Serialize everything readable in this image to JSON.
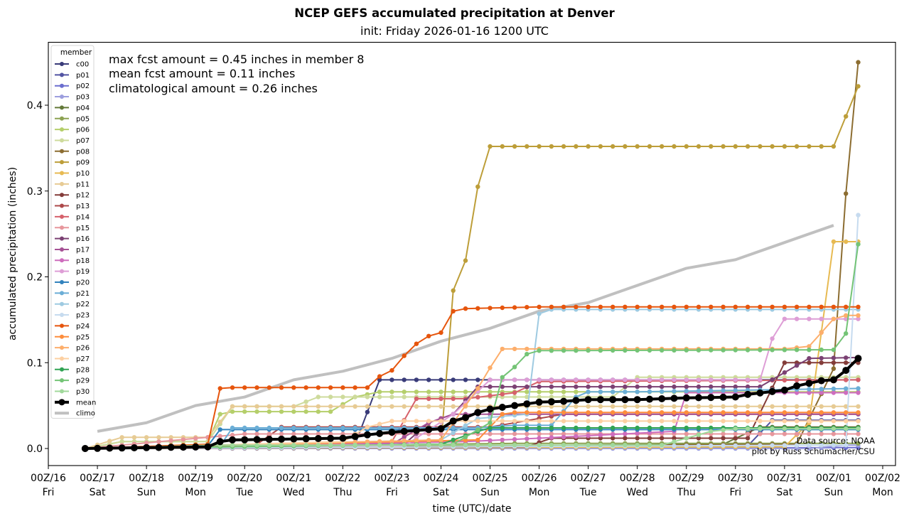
{
  "chart_data": {
    "type": "line",
    "title": "NCEP GEFS accumulated precipitation at Denver",
    "subtitle": "init: Friday 2026-01-16 1200 UTC",
    "xlabel": "time (UTC)/date",
    "ylabel": "accumulated precipitation (inches)",
    "x_units": "days since 00Z/16",
    "xlim": [
      0,
      17
    ],
    "ylim": [
      -0.022,
      0.475
    ],
    "grid": false,
    "x_ticks": [
      {
        "t": 0,
        "line1": "00Z/16",
        "line2": "Fri"
      },
      {
        "t": 1,
        "line1": "00Z/17",
        "line2": "Sat"
      },
      {
        "t": 2,
        "line1": "00Z/18",
        "line2": "Sun"
      },
      {
        "t": 3,
        "line1": "00Z/19",
        "line2": "Mon"
      },
      {
        "t": 4,
        "line1": "00Z/20",
        "line2": "Tue"
      },
      {
        "t": 5,
        "line1": "00Z/21",
        "line2": "Wed"
      },
      {
        "t": 6,
        "line1": "00Z/22",
        "line2": "Thu"
      },
      {
        "t": 7,
        "line1": "00Z/23",
        "line2": "Fri"
      },
      {
        "t": 8,
        "line1": "00Z/24",
        "line2": "Sat"
      },
      {
        "t": 9,
        "line1": "00Z/25",
        "line2": "Sun"
      },
      {
        "t": 10,
        "line1": "00Z/26",
        "line2": "Mon"
      },
      {
        "t": 11,
        "line1": "00Z/27",
        "line2": "Tue"
      },
      {
        "t": 12,
        "line1": "00Z/28",
        "line2": "Wed"
      },
      {
        "t": 13,
        "line1": "00Z/29",
        "line2": "Thu"
      },
      {
        "t": 14,
        "line1": "00Z/30",
        "line2": "Fri"
      },
      {
        "t": 15,
        "line1": "00Z/31",
        "line2": "Sat"
      },
      {
        "t": 16,
        "line1": "00Z/01",
        "line2": "Sun"
      },
      {
        "t": 17,
        "line1": "00Z/02",
        "line2": "Mon"
      }
    ],
    "y_ticks": [
      {
        "v": 0.0,
        "label": "0.0"
      },
      {
        "v": 0.1,
        "label": "0.1"
      },
      {
        "v": 0.2,
        "label": "0.2"
      },
      {
        "v": 0.3,
        "label": "0.3"
      },
      {
        "v": 0.4,
        "label": "0.4"
      }
    ],
    "time_start": 0.75,
    "time_end": 16.5,
    "time_step": 0.25,
    "legend": {
      "title": "member",
      "placement": "top-left"
    },
    "series": [
      {
        "name": "c00",
        "color": "#393b79",
        "points": [
          [
            0.75,
            0
          ],
          [
            6.25,
            0.005
          ],
          [
            6.75,
            0.08
          ],
          [
            16.5,
            0.08
          ]
        ]
      },
      {
        "name": "p01",
        "color": "#5254a3",
        "points": [
          [
            0.75,
            0
          ],
          [
            14.25,
            0.003
          ],
          [
            14.75,
            0.033
          ],
          [
            16.5,
            0.033
          ]
        ]
      },
      {
        "name": "p02",
        "color": "#6b6ecf",
        "points": [
          [
            0.75,
            0
          ],
          [
            16.5,
            0.001
          ]
        ]
      },
      {
        "name": "p03",
        "color": "#9c9ede",
        "points": [
          [
            0.75,
            0
          ],
          [
            15.5,
            0
          ],
          [
            16.25,
            0.004
          ],
          [
            16.5,
            0.004
          ]
        ]
      },
      {
        "name": "p04",
        "color": "#637939",
        "points": [
          [
            0.75,
            0
          ],
          [
            13.75,
            0.005
          ],
          [
            14.5,
            0.025
          ],
          [
            16.5,
            0.025
          ]
        ]
      },
      {
        "name": "p05",
        "color": "#8ca252",
        "points": [
          [
            0.75,
            0
          ],
          [
            9.5,
            0.006
          ],
          [
            16.5,
            0.006
          ]
        ]
      },
      {
        "name": "p06",
        "color": "#b5cf6b",
        "points": [
          [
            0.75,
            0
          ],
          [
            1.5,
            0.008
          ],
          [
            3.25,
            0.008
          ],
          [
            3.5,
            0.04
          ],
          [
            3.75,
            0.043
          ],
          [
            5.75,
            0.043
          ],
          [
            6.25,
            0.06
          ],
          [
            6.75,
            0.066
          ],
          [
            16.5,
            0.066
          ]
        ]
      },
      {
        "name": "p07",
        "color": "#cedb9c",
        "points": [
          [
            0.75,
            0
          ],
          [
            1.5,
            0.008
          ],
          [
            3.25,
            0.008
          ],
          [
            3.75,
            0.049
          ],
          [
            5,
            0.049
          ],
          [
            5.5,
            0.06
          ],
          [
            11.5,
            0.06
          ],
          [
            12,
            0.083
          ],
          [
            16.5,
            0.083
          ]
        ]
      },
      {
        "name": "p08",
        "color": "#8c6d31",
        "points": [
          [
            0.75,
            0
          ],
          [
            15.25,
            0.005
          ],
          [
            16,
            0.093
          ],
          [
            16.25,
            0.297
          ],
          [
            16.5,
            0.45
          ]
        ]
      },
      {
        "name": "p09",
        "color": "#bd9e39",
        "points": [
          [
            0.75,
            0
          ],
          [
            8,
            0.005
          ],
          [
            8.25,
            0.184
          ],
          [
            8.5,
            0.219
          ],
          [
            8.75,
            0.305
          ],
          [
            9,
            0.352
          ],
          [
            16,
            0.352
          ],
          [
            16.5,
            0.422
          ]
        ]
      },
      {
        "name": "p10",
        "color": "#e7ba52",
        "points": [
          [
            0.75,
            0
          ],
          [
            15,
            0.002
          ],
          [
            15.5,
            0.03
          ],
          [
            16,
            0.241
          ],
          [
            16.5,
            0.241
          ]
        ]
      },
      {
        "name": "p11",
        "color": "#e7cb94",
        "points": [
          [
            0.75,
            0
          ],
          [
            1.5,
            0.013
          ],
          [
            3.25,
            0.013
          ],
          [
            3.75,
            0.049
          ],
          [
            16.5,
            0.049
          ]
        ]
      },
      {
        "name": "p12",
        "color": "#843c39",
        "points": [
          [
            0.75,
            0
          ],
          [
            9.75,
            0.002
          ],
          [
            10.25,
            0.012
          ],
          [
            14.25,
            0.012
          ],
          [
            15,
            0.1
          ],
          [
            16.5,
            0.1
          ]
        ]
      },
      {
        "name": "p13",
        "color": "#ad494a",
        "points": [
          [
            0.75,
            0
          ],
          [
            4.25,
            0.005
          ],
          [
            4.75,
            0.025
          ],
          [
            9,
            0.025
          ],
          [
            10.5,
            0.04
          ],
          [
            16.5,
            0.04
          ]
        ]
      },
      {
        "name": "p14",
        "color": "#d6616b",
        "points": [
          [
            0.75,
            0
          ],
          [
            7,
            0.008
          ],
          [
            7.5,
            0.058
          ],
          [
            8.5,
            0.058
          ],
          [
            9.5,
            0.065
          ],
          [
            10,
            0.078
          ],
          [
            16.5,
            0.08
          ]
        ]
      },
      {
        "name": "p15",
        "color": "#e7969c",
        "points": [
          [
            0.75,
            0
          ],
          [
            4,
            0.017
          ],
          [
            16.5,
            0.017
          ]
        ]
      },
      {
        "name": "p16",
        "color": "#7b4173",
        "points": [
          [
            0.75,
            0
          ],
          [
            6.5,
            0.003
          ],
          [
            7.25,
            0.005
          ],
          [
            7.75,
            0.03
          ],
          [
            8.25,
            0.04
          ],
          [
            8.75,
            0.072
          ],
          [
            14.5,
            0.072
          ],
          [
            15.5,
            0.105
          ],
          [
            16.5,
            0.106
          ]
        ]
      },
      {
        "name": "p17",
        "color": "#a55194",
        "points": [
          [
            0.75,
            0
          ],
          [
            7,
            0.005
          ],
          [
            7.75,
            0.03
          ],
          [
            8.25,
            0.04
          ],
          [
            16.5,
            0.04
          ]
        ]
      },
      {
        "name": "p18",
        "color": "#ce6dbd",
        "points": [
          [
            0.75,
            0
          ],
          [
            8.5,
            0.008
          ],
          [
            10,
            0.012
          ],
          [
            12.75,
            0.02
          ],
          [
            13,
            0.065
          ],
          [
            16.5,
            0.065
          ]
        ]
      },
      {
        "name": "p19",
        "color": "#de9ed6",
        "points": [
          [
            0.75,
            0
          ],
          [
            7.25,
            0.003
          ],
          [
            8.25,
            0.04
          ],
          [
            9,
            0.08
          ],
          [
            14.5,
            0.08
          ],
          [
            14.75,
            0.128
          ],
          [
            15,
            0.151
          ],
          [
            16.5,
            0.151
          ]
        ]
      },
      {
        "name": "p20",
        "color": "#3182bd",
        "points": [
          [
            0.75,
            0
          ],
          [
            3.25,
            0.003
          ],
          [
            3.5,
            0.022
          ],
          [
            16.5,
            0.022
          ]
        ]
      },
      {
        "name": "p21",
        "color": "#6baed6",
        "points": [
          [
            0.75,
            0
          ],
          [
            3.5,
            0.003
          ],
          [
            3.75,
            0.024
          ],
          [
            8.75,
            0.024
          ],
          [
            9.5,
            0.027
          ],
          [
            10.25,
            0.027
          ],
          [
            10.75,
            0.06
          ],
          [
            11,
            0.066
          ],
          [
            12,
            0.066
          ],
          [
            16.5,
            0.07
          ]
        ]
      },
      {
        "name": "p22",
        "color": "#9ecae1",
        "points": [
          [
            0.75,
            0
          ],
          [
            8,
            0.01
          ],
          [
            8.75,
            0.035
          ],
          [
            9.75,
            0.04
          ],
          [
            10,
            0.157
          ],
          [
            10.25,
            0.162
          ],
          [
            16.5,
            0.162
          ]
        ]
      },
      {
        "name": "p23",
        "color": "#c6dbef",
        "points": [
          [
            0.75,
            0
          ],
          [
            16.25,
            0.004
          ],
          [
            16.5,
            0.272
          ]
        ]
      },
      {
        "name": "p24",
        "color": "#e6550d",
        "points": [
          [
            0.75,
            0
          ],
          [
            3.25,
            0.005
          ],
          [
            3.5,
            0.07
          ],
          [
            3.75,
            0.071
          ],
          [
            6.5,
            0.071
          ],
          [
            6.75,
            0.084
          ],
          [
            7,
            0.091
          ],
          [
            7.25,
            0.108
          ],
          [
            7.5,
            0.122
          ],
          [
            7.75,
            0.131
          ],
          [
            8,
            0.135
          ],
          [
            8.25,
            0.16
          ],
          [
            8.5,
            0.163
          ],
          [
            10,
            0.165
          ],
          [
            16.5,
            0.165
          ]
        ]
      },
      {
        "name": "p25",
        "color": "#fd8d3c",
        "points": [
          [
            0.75,
            0
          ],
          [
            8.75,
            0.01
          ],
          [
            9.25,
            0.04
          ],
          [
            9.5,
            0.042
          ],
          [
            16.5,
            0.042
          ]
        ]
      },
      {
        "name": "p26",
        "color": "#fdae6b",
        "points": [
          [
            0.75,
            0
          ],
          [
            8,
            0.01
          ],
          [
            8.75,
            0.07
          ],
          [
            9,
            0.094
          ],
          [
            9.25,
            0.116
          ],
          [
            15,
            0.116
          ],
          [
            15.5,
            0.119
          ],
          [
            16,
            0.151
          ],
          [
            16.25,
            0.155
          ],
          [
            16.5,
            0.155
          ]
        ]
      },
      {
        "name": "p27",
        "color": "#fdd0a2",
        "points": [
          [
            0.75,
            0
          ],
          [
            6,
            0.008
          ],
          [
            6.5,
            0.025
          ],
          [
            7,
            0.032
          ],
          [
            16.5,
            0.032
          ]
        ]
      },
      {
        "name": "p28",
        "color": "#31a354",
        "points": [
          [
            0.75,
            0
          ],
          [
            8,
            0.005
          ],
          [
            8.75,
            0.02
          ],
          [
            9,
            0.024
          ],
          [
            16.5,
            0.024
          ]
        ]
      },
      {
        "name": "p29",
        "color": "#74c476",
        "points": [
          [
            0.75,
            0
          ],
          [
            8.25,
            0.005
          ],
          [
            9,
            0.03
          ],
          [
            9.25,
            0.083
          ],
          [
            9.5,
            0.095
          ],
          [
            9.75,
            0.11
          ],
          [
            10,
            0.114
          ],
          [
            15.75,
            0.115
          ],
          [
            16,
            0.115
          ],
          [
            16.25,
            0.134
          ],
          [
            16.5,
            0.238
          ]
        ]
      },
      {
        "name": "p30",
        "color": "#a1d99b",
        "points": [
          [
            0.75,
            0
          ],
          [
            3.5,
            0.004
          ],
          [
            12.5,
            0.004
          ],
          [
            13.5,
            0.02
          ],
          [
            14,
            0.023
          ],
          [
            16.5,
            0.023
          ]
        ]
      }
    ],
    "mean": {
      "name": "mean",
      "color": "#000000",
      "points": [
        [
          0.75,
          0
        ],
        [
          3.25,
          0.002
        ],
        [
          3.5,
          0.008
        ],
        [
          3.75,
          0.01
        ],
        [
          6,
          0.012
        ],
        [
          6.5,
          0.016
        ],
        [
          7,
          0.019
        ],
        [
          8,
          0.023
        ],
        [
          8.25,
          0.032
        ],
        [
          8.5,
          0.036
        ],
        [
          8.75,
          0.042
        ],
        [
          9,
          0.046
        ],
        [
          9.25,
          0.048
        ],
        [
          10,
          0.054
        ],
        [
          10.5,
          0.055
        ],
        [
          11,
          0.057
        ],
        [
          12,
          0.057
        ],
        [
          13,
          0.059
        ],
        [
          14,
          0.06
        ],
        [
          14.25,
          0.063
        ],
        [
          15,
          0.068
        ],
        [
          15.25,
          0.073
        ],
        [
          15.5,
          0.076
        ],
        [
          15.75,
          0.079
        ],
        [
          16,
          0.08
        ],
        [
          16.25,
          0.091
        ],
        [
          16.5,
          0.105
        ]
      ]
    },
    "climo": {
      "name": "climo",
      "color": "#c0c0c0",
      "points": [
        [
          1,
          0.02
        ],
        [
          2,
          0.03
        ],
        [
          3,
          0.05
        ],
        [
          4,
          0.06
        ],
        [
          5,
          0.08
        ],
        [
          6,
          0.09
        ],
        [
          7,
          0.105
        ],
        [
          8,
          0.125
        ],
        [
          9,
          0.14
        ],
        [
          10,
          0.16
        ],
        [
          11,
          0.17
        ],
        [
          12,
          0.19
        ],
        [
          13,
          0.21
        ],
        [
          14,
          0.22
        ],
        [
          15,
          0.24
        ],
        [
          16,
          0.26
        ]
      ]
    }
  },
  "annotations": {
    "lines": [
      "max fcst amount = 0.45 inches in member 8",
      "mean fcst amount = 0.11 inches",
      "climatological amount = 0.26 inches"
    ],
    "credit_line1": "Data source: NOAA",
    "credit_line2": "plot by Russ Schumacher/CSU"
  }
}
